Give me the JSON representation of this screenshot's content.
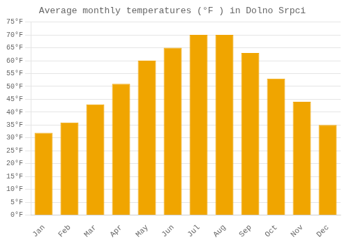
{
  "chart_data": {
    "type": "bar",
    "title": "Average monthly temperatures (°F ) in Dolno Srpci",
    "categories": [
      "Jan",
      "Feb",
      "Mar",
      "Apr",
      "May",
      "Jun",
      "Jul",
      "Aug",
      "Sep",
      "Oct",
      "Nov",
      "Dec"
    ],
    "values": [
      32,
      36,
      43,
      51,
      60,
      65,
      70,
      70,
      63,
      53,
      44,
      35
    ],
    "color": "#F0A500",
    "ylim": [
      0,
      75
    ],
    "yticks": [
      {
        "value": 0,
        "label": "0°F"
      },
      {
        "value": 5,
        "label": "5°F"
      },
      {
        "value": 10,
        "label": "10°F"
      },
      {
        "value": 15,
        "label": "15°F"
      },
      {
        "value": 20,
        "label": "20°F"
      },
      {
        "value": 25,
        "label": "25°F"
      },
      {
        "value": 30,
        "label": "30°F"
      },
      {
        "value": 35,
        "label": "35°F"
      },
      {
        "value": 40,
        "label": "40°F"
      },
      {
        "value": 45,
        "label": "45°F"
      },
      {
        "value": 50,
        "label": "50°F"
      },
      {
        "value": 55,
        "label": "55°F"
      },
      {
        "value": 60,
        "label": "60°F"
      },
      {
        "value": 65,
        "label": "65°F"
      },
      {
        "value": 70,
        "label": "70°F"
      },
      {
        "value": 75,
        "label": "75°F"
      }
    ],
    "grid": true
  }
}
